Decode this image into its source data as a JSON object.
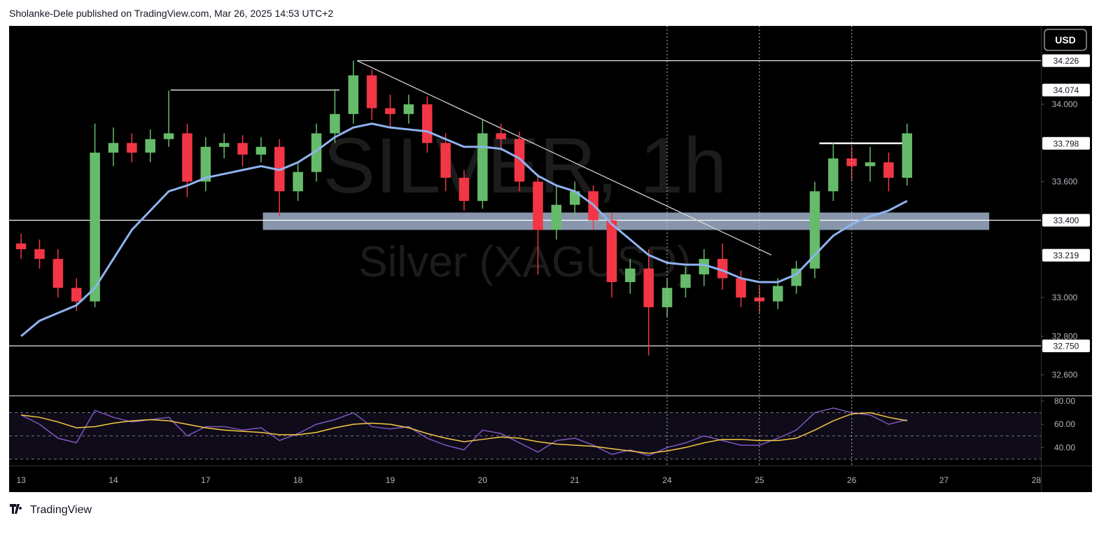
{
  "header": "Sholanke-Dele published on TradingView.com, Mar 26, 2025 14:53 UTC+2",
  "brand": "TradingView",
  "chart_data": {
    "type": "candlestick",
    "currency": "USD",
    "watermark": [
      "SILVER, 1h",
      "Silver (XAGUSD)"
    ],
    "up_color": "#66bb6a",
    "down_color": "#f23645",
    "x": [
      0,
      0.2,
      0.4,
      0.6,
      0.8,
      1,
      1.2,
      1.4,
      1.6,
      1.8,
      2,
      2.2,
      2.4,
      2.6,
      2.8,
      3,
      3.2,
      3.4,
      3.6,
      3.8,
      4,
      4.2,
      4.4,
      4.6,
      4.8,
      5,
      5.2,
      5.4,
      5.6,
      5.8,
      6,
      6.2,
      6.4,
      6.6,
      6.8,
      7,
      7.2,
      7.4,
      7.6,
      7.8,
      8,
      8.2,
      8.4,
      8.6,
      8.8,
      9,
      9.2,
      9.4,
      9.6
    ],
    "open": [
      33.28,
      33.25,
      33.2,
      33.05,
      32.98,
      33.75,
      33.8,
      33.75,
      33.82,
      33.85,
      33.6,
      33.78,
      33.8,
      33.74,
      33.78,
      33.55,
      33.65,
      33.85,
      33.95,
      34.15,
      33.98,
      33.95,
      34.0,
      33.8,
      33.62,
      33.5,
      33.85,
      33.82,
      33.6,
      33.35,
      33.48,
      33.55,
      33.4,
      33.08,
      33.15,
      32.95,
      33.05,
      33.12,
      33.2,
      33.1,
      33.0,
      32.98,
      33.06,
      33.15,
      33.55,
      33.72,
      33.68,
      33.7,
      33.62
    ],
    "high": [
      33.33,
      33.3,
      33.25,
      33.1,
      33.9,
      33.88,
      33.85,
      33.87,
      34.07,
      33.9,
      33.83,
      33.85,
      33.84,
      33.83,
      33.82,
      33.7,
      33.9,
      34.08,
      34.226,
      34.18,
      34.05,
      34.05,
      34.04,
      33.85,
      33.66,
      33.92,
      33.9,
      33.86,
      33.64,
      33.58,
      33.6,
      33.58,
      33.44,
      33.2,
      33.25,
      33.1,
      33.16,
      33.25,
      33.28,
      33.14,
      33.06,
      33.1,
      33.19,
      33.6,
      33.8,
      33.78,
      33.78,
      33.75,
      33.9
    ],
    "low": [
      33.2,
      33.15,
      33.0,
      32.93,
      32.95,
      33.68,
      33.7,
      33.7,
      33.78,
      33.52,
      33.55,
      33.72,
      33.68,
      33.7,
      33.42,
      33.5,
      33.6,
      33.8,
      33.9,
      33.92,
      33.88,
      33.9,
      33.75,
      33.55,
      33.45,
      33.46,
      33.76,
      33.55,
      33.12,
      33.3,
      33.42,
      33.35,
      33.0,
      33.02,
      32.7,
      32.9,
      33.0,
      33.06,
      33.04,
      32.95,
      32.92,
      32.94,
      33.02,
      33.1,
      33.5,
      33.6,
      33.6,
      33.55,
      33.58
    ],
    "close": [
      33.25,
      33.2,
      33.05,
      32.98,
      33.75,
      33.8,
      33.75,
      33.82,
      33.85,
      33.6,
      33.78,
      33.8,
      33.74,
      33.78,
      33.55,
      33.65,
      33.85,
      33.95,
      34.15,
      33.98,
      33.95,
      34.0,
      33.8,
      33.62,
      33.5,
      33.85,
      33.82,
      33.6,
      33.35,
      33.48,
      33.55,
      33.4,
      33.08,
      33.15,
      32.95,
      33.05,
      33.12,
      33.2,
      33.1,
      33.0,
      32.98,
      33.06,
      33.15,
      33.55,
      33.72,
      33.68,
      33.7,
      33.62,
      33.85
    ],
    "ma": {
      "color": "#8fb3f0",
      "values": [
        32.8,
        32.88,
        32.92,
        32.96,
        33.05,
        33.2,
        33.35,
        33.45,
        33.55,
        33.58,
        33.62,
        33.64,
        33.66,
        33.68,
        33.66,
        33.7,
        33.76,
        33.83,
        33.88,
        33.9,
        33.88,
        33.87,
        33.86,
        33.82,
        33.78,
        33.78,
        33.77,
        33.72,
        33.63,
        33.58,
        33.55,
        33.48,
        33.38,
        33.3,
        33.22,
        33.18,
        33.17,
        33.17,
        33.14,
        33.1,
        33.08,
        33.08,
        33.12,
        33.22,
        33.32,
        33.38,
        33.42,
        33.45,
        33.5
      ]
    },
    "xlim": [
      -0.13,
      11.05
    ],
    "xticks": [
      {
        "value": 0,
        "label": "13"
      },
      {
        "value": 1,
        "label": "14"
      },
      {
        "value": 2,
        "label": "17"
      },
      {
        "value": 3,
        "label": "18"
      },
      {
        "value": 4,
        "label": "19"
      },
      {
        "value": 5,
        "label": "20"
      },
      {
        "value": 6,
        "label": "21"
      },
      {
        "value": 7,
        "label": "24"
      },
      {
        "value": 8,
        "label": "25"
      },
      {
        "value": 9,
        "label": "26"
      },
      {
        "value": 10,
        "label": "27"
      },
      {
        "value": 11,
        "label": "28"
      }
    ],
    "vlines": [
      7,
      8,
      9
    ],
    "ylim": [
      32.493,
      34.406
    ],
    "yticks": [
      {
        "value": 32.6,
        "label": "32.600"
      },
      {
        "value": 32.8,
        "label": "32.800"
      },
      {
        "value": 33,
        "label": "33.000"
      },
      {
        "value": 33.6,
        "label": "33.600"
      },
      {
        "value": 34,
        "label": "34.000"
      }
    ],
    "levels": [
      {
        "value": 34.226,
        "label": "34.226",
        "from": 3.64,
        "to": 11.05
      },
      {
        "value": 34.074,
        "label": "34.074",
        "from": 1.62,
        "to": 3.45
      },
      {
        "value": 33.798,
        "label": "33.798",
        "from": 8.65,
        "to": 9.58
      },
      {
        "value": 33.4,
        "label": "33.400",
        "from": -0.13,
        "to": 11.05
      },
      {
        "value": 33.219,
        "label": "33.219"
      },
      {
        "value": 32.75,
        "label": "32.750",
        "from": -0.13,
        "to": 11.05
      }
    ],
    "zone": {
      "low": 33.35,
      "high": 33.44,
      "from": 2.62,
      "to": 10.49,
      "color": "#b5c8e6"
    },
    "trendline": {
      "x": [
        3.64,
        8.13
      ],
      "y": [
        34.226,
        33.22
      ]
    },
    "rsi": {
      "ylim": [
        24.5,
        84.2
      ],
      "yticks": [
        {
          "value": 40,
          "label": "40.00"
        },
        {
          "value": 60,
          "label": "60.00"
        },
        {
          "value": 80,
          "label": "80.00"
        }
      ],
      "bands": [
        30,
        50,
        70
      ],
      "series": [
        {
          "color": "#7e57c2",
          "values": [
            68,
            60,
            48,
            44,
            72,
            66,
            62,
            64,
            66,
            50,
            58,
            58,
            55,
            57,
            46,
            52,
            60,
            64,
            70,
            58,
            56,
            58,
            48,
            42,
            38,
            55,
            52,
            44,
            36,
            46,
            48,
            42,
            34,
            38,
            33,
            40,
            44,
            50,
            46,
            42,
            42,
            48,
            55,
            70,
            74,
            70,
            68,
            60,
            64
          ]
        },
        {
          "color": "#f7c846",
          "values": [
            68,
            66,
            62,
            57,
            58,
            61,
            63,
            64,
            63,
            60,
            57,
            55,
            54,
            53,
            51,
            51,
            53,
            57,
            60,
            61,
            60,
            57,
            52,
            48,
            45,
            47,
            49,
            48,
            45,
            43,
            42,
            41,
            39,
            37,
            35,
            37,
            40,
            44,
            47,
            47,
            46,
            46,
            48,
            55,
            63,
            69,
            70,
            66,
            63
          ]
        }
      ]
    }
  }
}
